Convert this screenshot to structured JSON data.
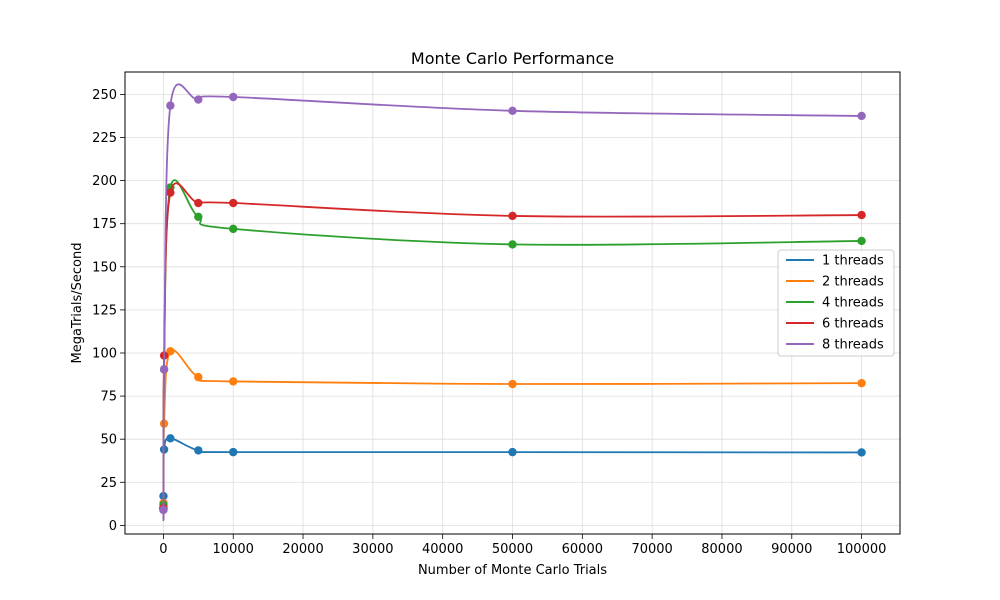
{
  "chart_data": {
    "type": "line",
    "title": "Monte Carlo Performance",
    "xlabel": "Number of Monte Carlo Trials",
    "ylabel": "MegaTrials/Second",
    "xlim": [
      -5500,
      105500
    ],
    "ylim": [
      -5,
      263
    ],
    "xticks": [
      0,
      10000,
      20000,
      30000,
      40000,
      50000,
      60000,
      70000,
      80000,
      90000,
      100000
    ],
    "yticks": [
      0,
      25,
      50,
      75,
      100,
      125,
      150,
      175,
      200,
      225,
      250
    ],
    "grid": true,
    "legend": "center-right",
    "series": [
      {
        "name": "1 threads",
        "color": "#1f77b4",
        "x": [
          1,
          10,
          100,
          1000,
          5000,
          10000,
          50000,
          100000
        ],
        "y": [
          10,
          17,
          44,
          50.5,
          43.5,
          42.5,
          42.5,
          42.3
        ]
      },
      {
        "name": "2 threads",
        "color": "#ff7f0e",
        "x": [
          1,
          10,
          100,
          1000,
          5000,
          10000,
          50000,
          100000
        ],
        "y": [
          10,
          13,
          59,
          101,
          86,
          83.5,
          82,
          82.5
        ]
      },
      {
        "name": "4 threads",
        "color": "#2ca02c",
        "x": [
          1,
          10,
          100,
          1000,
          5000,
          10000,
          50000,
          100000
        ],
        "y": [
          10,
          12,
          90.5,
          196,
          179,
          172,
          163,
          165
        ]
      },
      {
        "name": "6 threads",
        "color": "#d62728",
        "x": [
          1,
          10,
          100,
          1000,
          5000,
          10000,
          50000,
          100000
        ],
        "y": [
          10,
          10,
          98.5,
          193,
          187,
          187,
          179.5,
          180
        ]
      },
      {
        "name": "8 threads",
        "color": "#9467bd",
        "x": [
          1,
          10,
          100,
          1000,
          5000,
          10000,
          50000,
          100000
        ],
        "y": [
          9,
          9,
          90.5,
          243.5,
          247,
          248.5,
          240.5,
          237.5
        ]
      }
    ]
  }
}
